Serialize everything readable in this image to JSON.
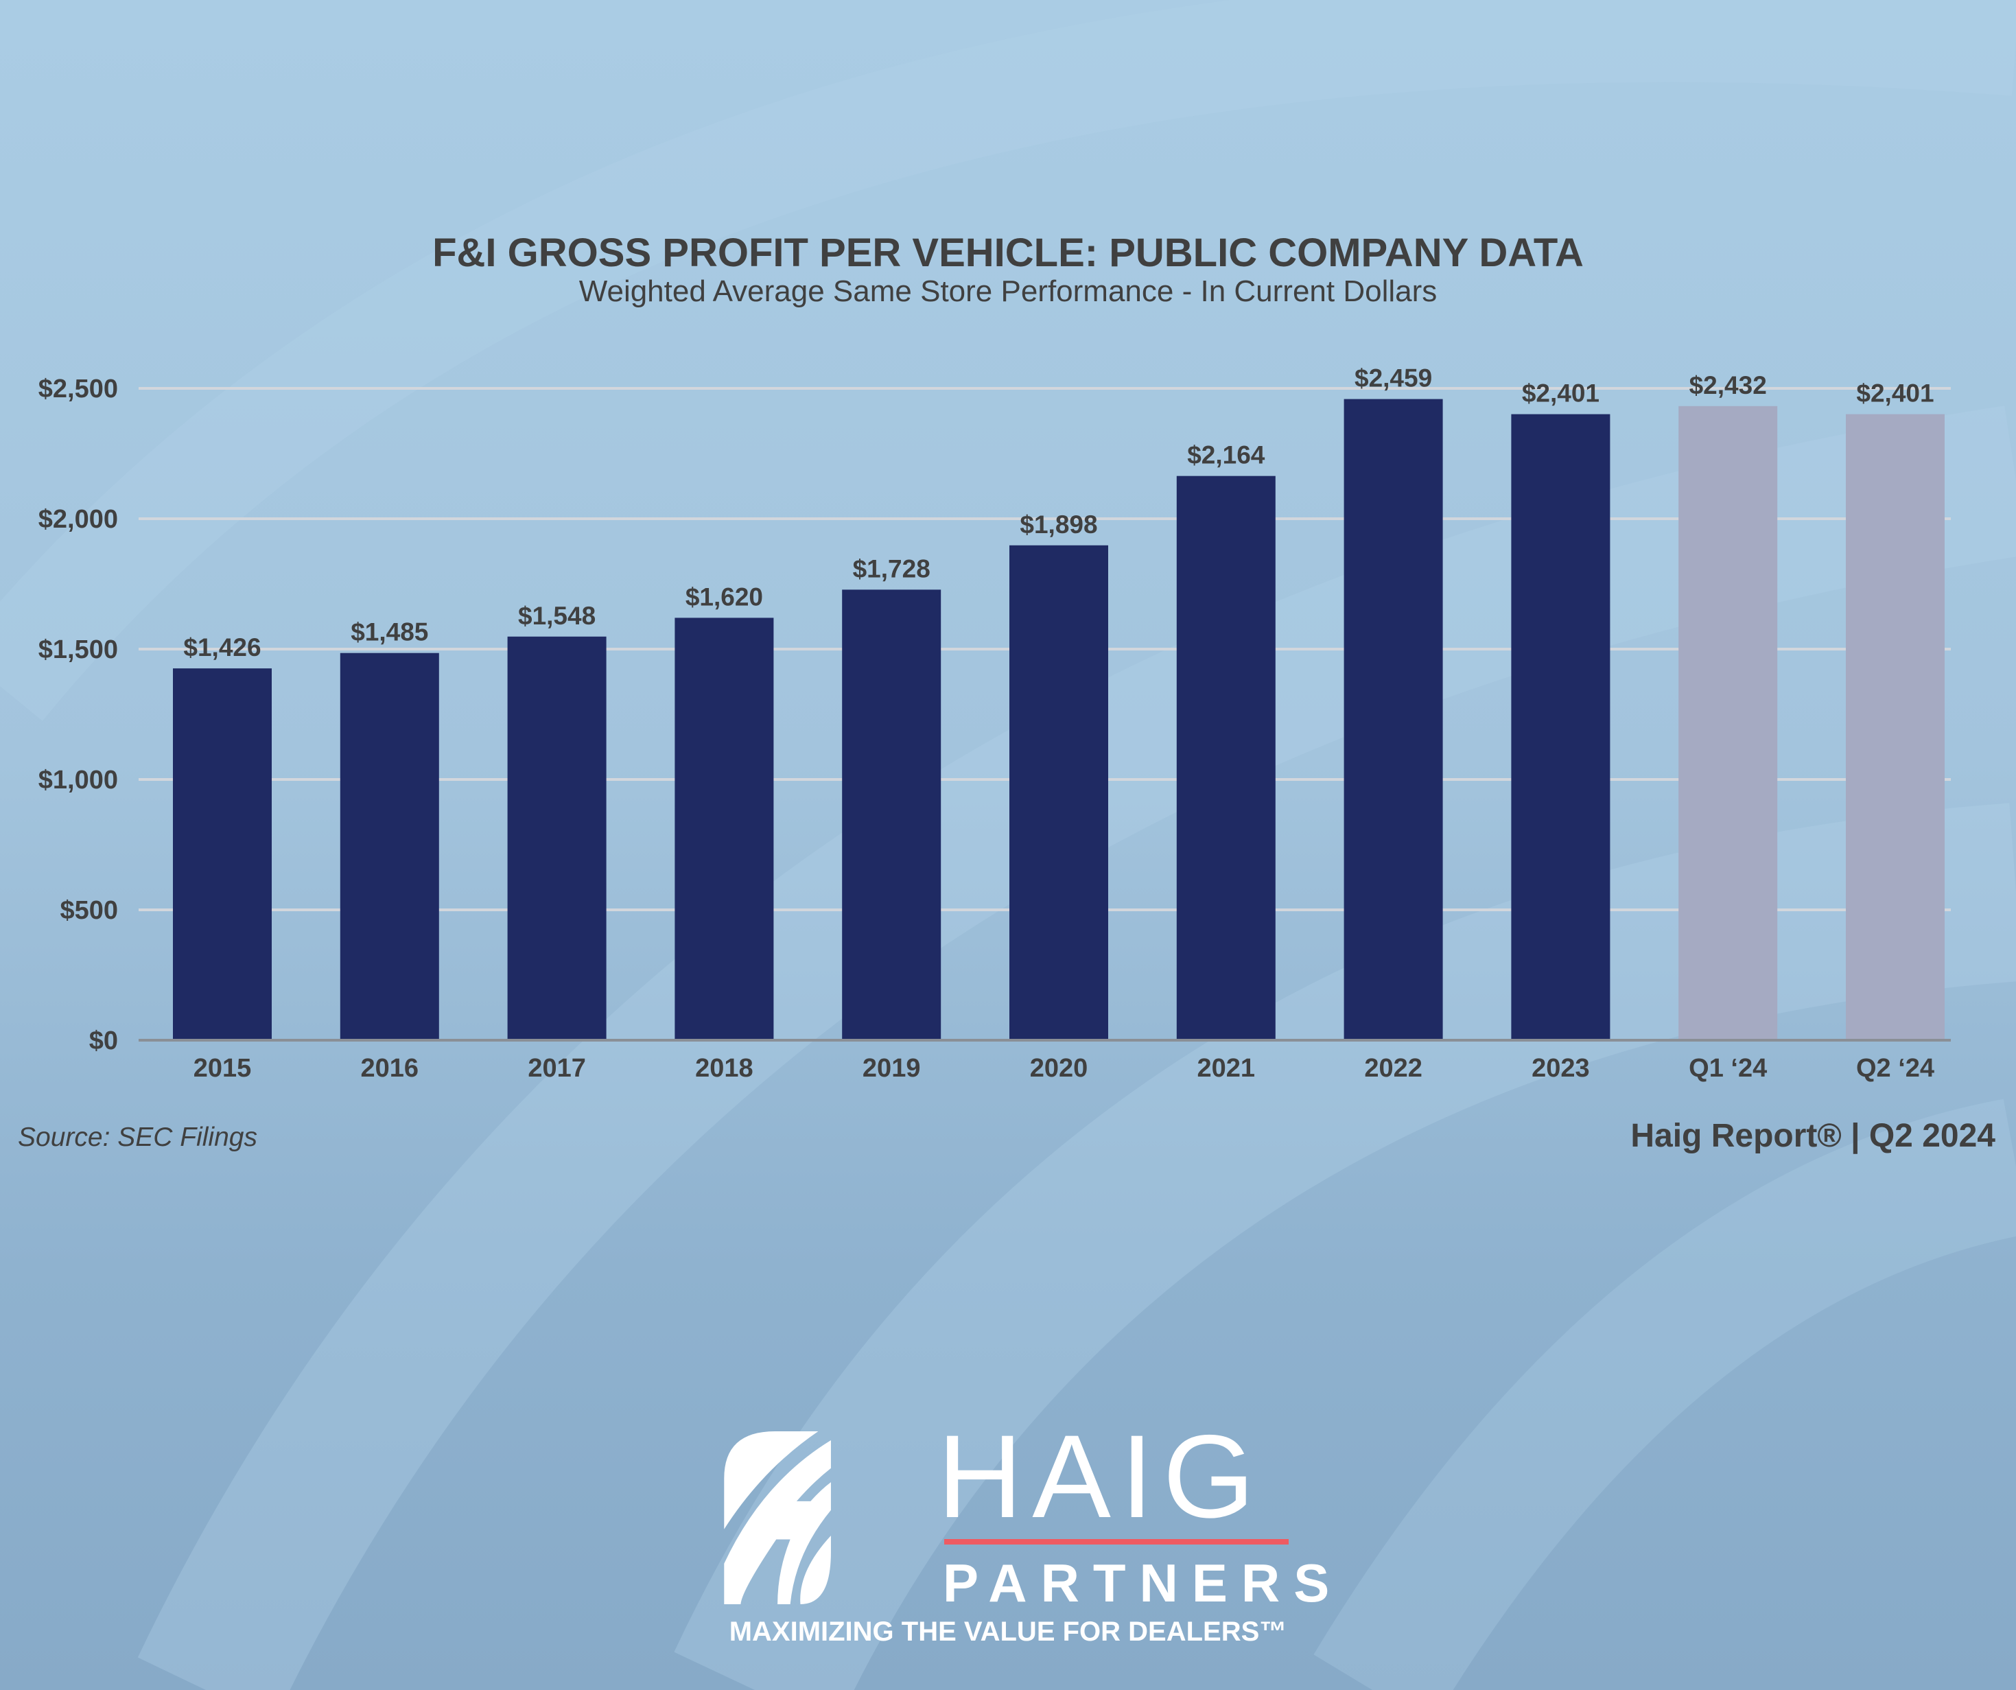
{
  "chart_data": {
    "type": "bar",
    "title": "F&I GROSS PROFIT PER VEHICLE: PUBLIC COMPANY DATA",
    "subtitle": "Weighted Average Same Store Performance - In Current Dollars",
    "xlabel": "",
    "ylabel": "",
    "categories": [
      "2015",
      "2016",
      "2017",
      "2018",
      "2019",
      "2020",
      "2021",
      "2022",
      "2023",
      "Q1 ‘24",
      "Q2 ‘24"
    ],
    "values": [
      1426,
      1485,
      1548,
      1620,
      1728,
      1898,
      2164,
      2459,
      2401,
      2432,
      2401
    ],
    "data_labels": [
      "$1,426",
      "$1,485",
      "$1,548",
      "$1,620",
      "$1,728",
      "$1,898",
      "$2,164",
      "$2,459",
      "$2,401",
      "$2,432",
      "$2,401"
    ],
    "ylim": [
      0,
      2500
    ],
    "yticks": [
      0,
      500,
      1000,
      1500,
      2000,
      2500
    ],
    "ytick_labels": [
      "$0",
      "$500",
      "$1,000",
      "$1,500",
      "$2,000",
      "$2,500"
    ],
    "grid": true,
    "legend": "none",
    "colors": {
      "annual": "#1f2a63",
      "quarterly": "#a5aac2",
      "gridline": "#d2d6dc",
      "axis": "#8a8f96",
      "text": "#404040"
    }
  },
  "footer": {
    "source": "Source: SEC Filings",
    "credit": "Haig Report® | Q2 2024"
  },
  "logo": {
    "word": "HAIG",
    "sub": "PARTNERS",
    "tagline": "MAXIMIZING THE VALUE FOR DEALERS™",
    "accent": "#ee5b62"
  }
}
